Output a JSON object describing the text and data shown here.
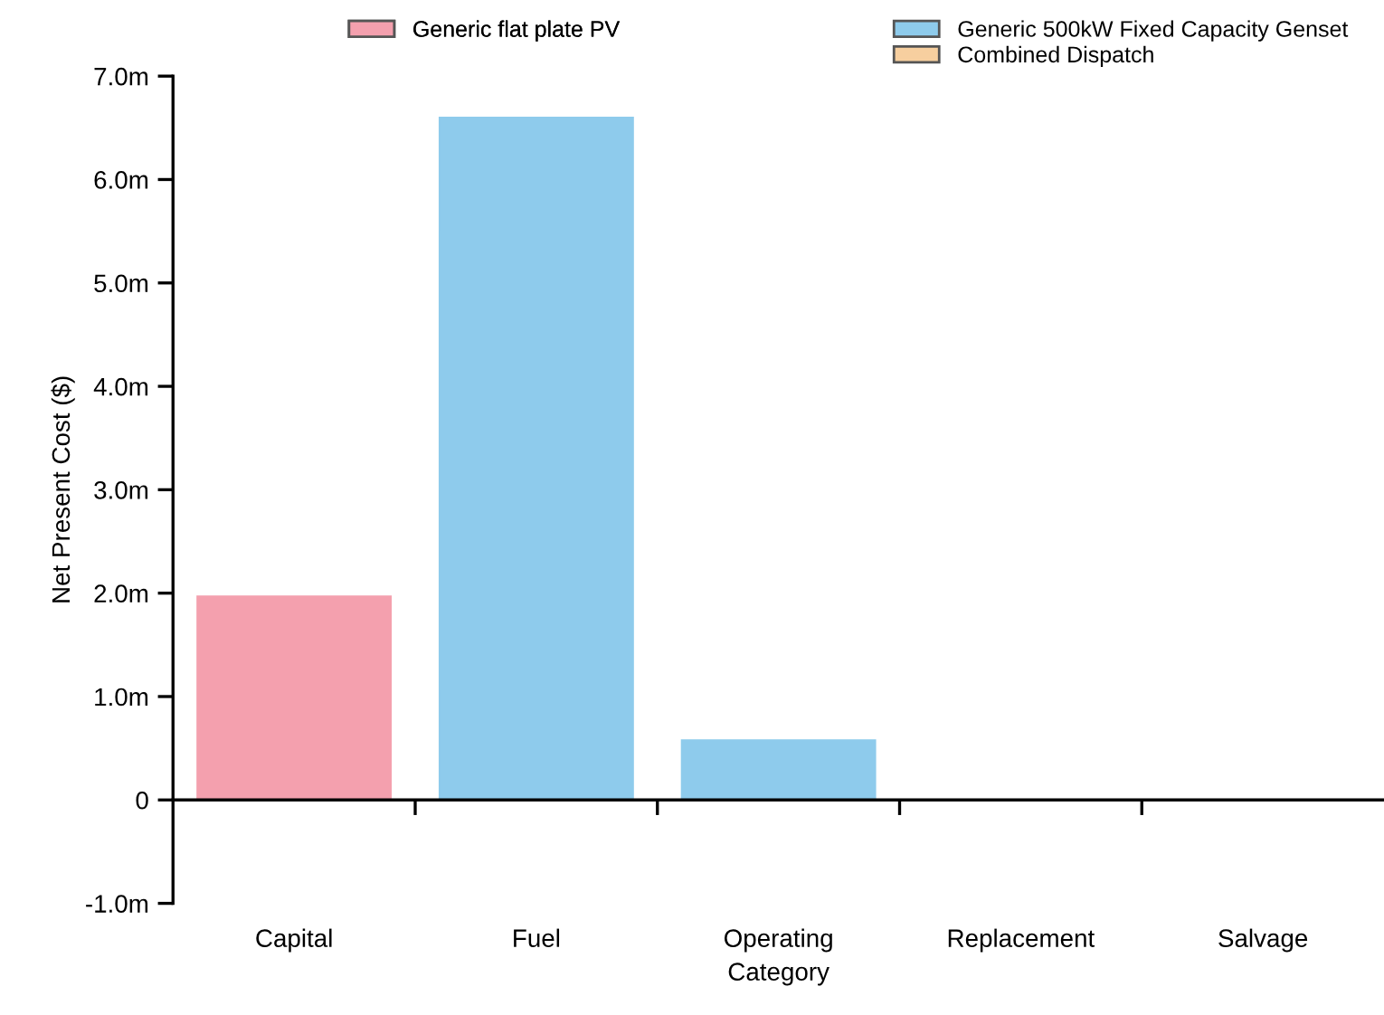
{
  "chart_data": {
    "type": "bar",
    "stacked": true,
    "xlabel": "Category",
    "ylabel": "Net Present Cost ($)",
    "categories": [
      "Capital",
      "Fuel",
      "Operating",
      "Replacement",
      "Salvage"
    ],
    "series": [
      {
        "name": "Generic flat plate PV",
        "color": "#f4a0ae",
        "values": [
          1.97,
          0,
          0,
          0,
          0
        ]
      },
      {
        "name": "Generic 500kW Fixed Capacity Genset",
        "color": "#8ecbec",
        "values": [
          0,
          6.6,
          0.58,
          0,
          0
        ]
      },
      {
        "name": "Combined Dispatch",
        "color": "#f7cf9f",
        "values": [
          0,
          0,
          0,
          0,
          0
        ]
      }
    ],
    "ylim": [
      -1.0,
      7.0
    ],
    "yticks": [
      {
        "value": -1.0,
        "label": "-1.0m"
      },
      0,
      {
        "value": 1.0,
        "label": "1.0m"
      },
      {
        "value": 2.0,
        "label": "2.0m"
      },
      {
        "value": 3.0,
        "label": "3.0m"
      },
      {
        "value": 4.0,
        "label": "4.0m"
      },
      {
        "value": 5.0,
        "label": "5.0m"
      },
      {
        "value": 6.0,
        "label": "6.0m"
      },
      {
        "value": 7.0,
        "label": "7.0m"
      }
    ],
    "legend": "top"
  }
}
